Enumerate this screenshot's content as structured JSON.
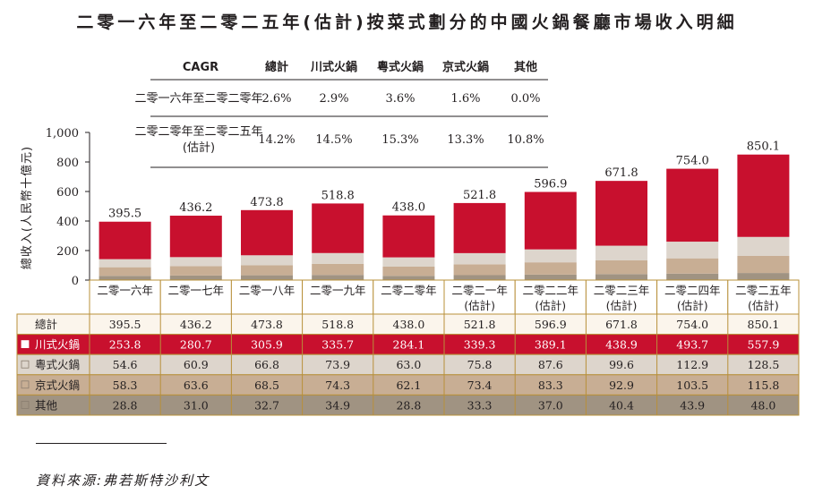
{
  "title": "二零一六年至二零二五年(估計)按菜式劃分的中國火鍋餐廳市場收入明細",
  "source": "資料來源:弗若斯特沙利文",
  "colors": {
    "sichuan": "#c8102e",
    "cantonese": "#ddd5cc",
    "beijing": "#c8ae94",
    "other": "#a09382",
    "total_row": "#fbf5ec",
    "gold_border": "#b8903a"
  },
  "cagr_table": {
    "headers": [
      "CAGR",
      "總計",
      "川式火鍋",
      "粵式火鍋",
      "京式火鍋",
      "其他"
    ],
    "rows": [
      {
        "period": "二零一六年至二零二零年",
        "values": [
          "2.6%",
          "2.9%",
          "3.6%",
          "1.6%",
          "0.0%"
        ]
      },
      {
        "period_line1": "二零二零年至二零二五年",
        "period_line2": "(估計)",
        "values": [
          "14.2%",
          "14.5%",
          "15.3%",
          "13.3%",
          "10.8%"
        ]
      }
    ]
  },
  "chart_data": {
    "type": "bar",
    "stacked": true,
    "ylabel": "總收入(人民幣十億元)",
    "ylim": [
      0,
      1000
    ],
    "yticks": [
      "0",
      "200",
      "400",
      "600",
      "800",
      "1,000"
    ],
    "categories": [
      {
        "line1": "二零一六年",
        "line2": ""
      },
      {
        "line1": "二零一七年",
        "line2": ""
      },
      {
        "line1": "二零一八年",
        "line2": ""
      },
      {
        "line1": "二零一九年",
        "line2": ""
      },
      {
        "line1": "二零二零年",
        "line2": ""
      },
      {
        "line1": "二零二一年",
        "line2": "(估計)"
      },
      {
        "line1": "二零二二年",
        "line2": "(估計)"
      },
      {
        "line1": "二零二三年",
        "line2": "(估計)"
      },
      {
        "line1": "二零二四年",
        "line2": "(估計)"
      },
      {
        "line1": "二零二五年",
        "line2": "(估計)"
      }
    ],
    "totals_label": "總計",
    "totals": [
      "395.5",
      "436.2",
      "473.8",
      "518.8",
      "438.0",
      "521.8",
      "596.9",
      "671.8",
      "754.0",
      "850.1"
    ],
    "series": [
      {
        "name": "其他",
        "key": "other",
        "values": [
          "28.8",
          "31.0",
          "32.7",
          "34.9",
          "28.8",
          "33.3",
          "37.0",
          "40.4",
          "43.9",
          "48.0"
        ]
      },
      {
        "name": "京式火鍋",
        "key": "beijing",
        "values": [
          "58.3",
          "63.6",
          "68.5",
          "74.3",
          "62.1",
          "73.4",
          "83.3",
          "92.9",
          "103.5",
          "115.8"
        ]
      },
      {
        "name": "粵式火鍋",
        "key": "cantonese",
        "values": [
          "54.6",
          "60.9",
          "66.8",
          "73.9",
          "63.0",
          "75.8",
          "87.6",
          "99.6",
          "112.9",
          "128.5"
        ]
      },
      {
        "name": "川式火鍋",
        "key": "sichuan",
        "values": [
          "253.8",
          "280.7",
          "305.9",
          "335.7",
          "284.1",
          "339.3",
          "389.1",
          "438.9",
          "493.7",
          "557.9"
        ]
      }
    ],
    "table_order": [
      "sichuan",
      "cantonese",
      "beijing",
      "other"
    ]
  }
}
